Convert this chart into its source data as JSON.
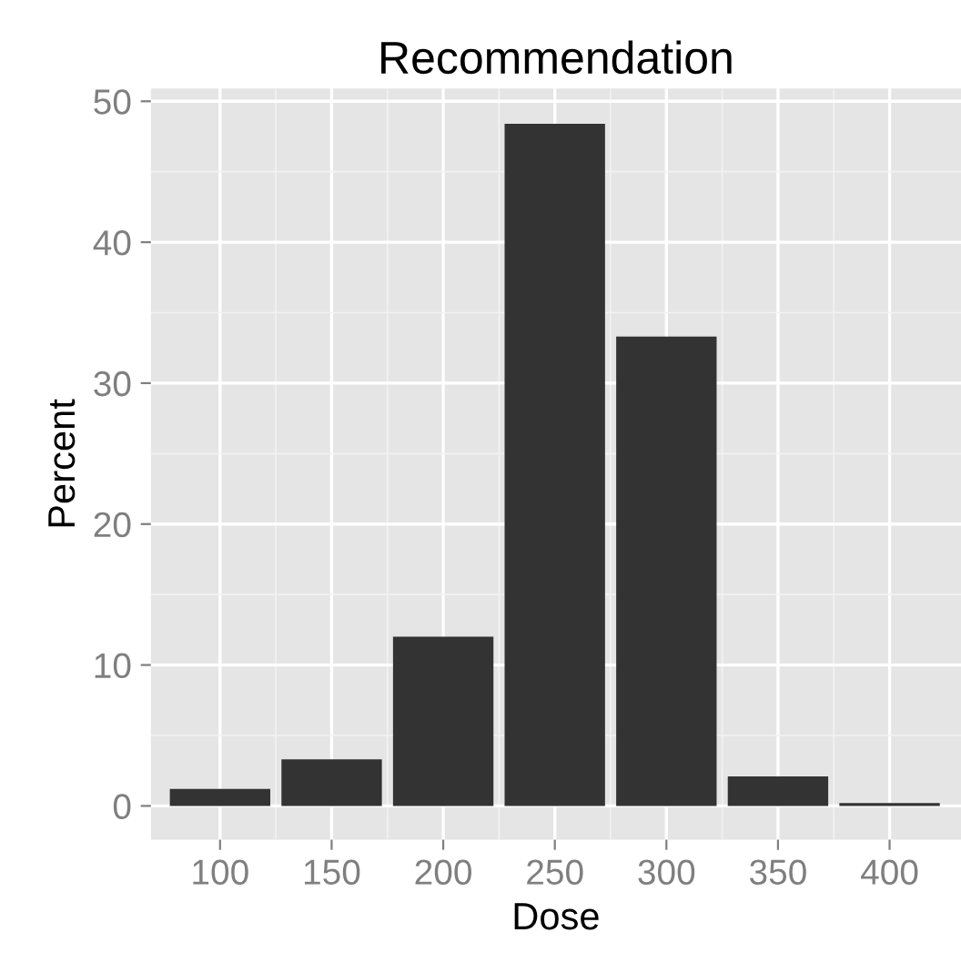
{
  "chart_data": {
    "type": "bar",
    "title": "Recommendation",
    "xlabel": "Dose",
    "ylabel": "Percent",
    "x": [
      100,
      150,
      200,
      250,
      300,
      350,
      400
    ],
    "values": [
      1.2,
      3.3,
      12.0,
      48.4,
      33.3,
      2.1,
      0.2
    ],
    "color": "#333333",
    "xlim": [
      69,
      432
    ],
    "xticks": [
      100,
      150,
      200,
      250,
      300,
      350,
      400
    ],
    "ylim": [
      -2.4,
      50.9
    ],
    "yticks": [
      0,
      10,
      20,
      30,
      40,
      50
    ],
    "grid": true
  }
}
